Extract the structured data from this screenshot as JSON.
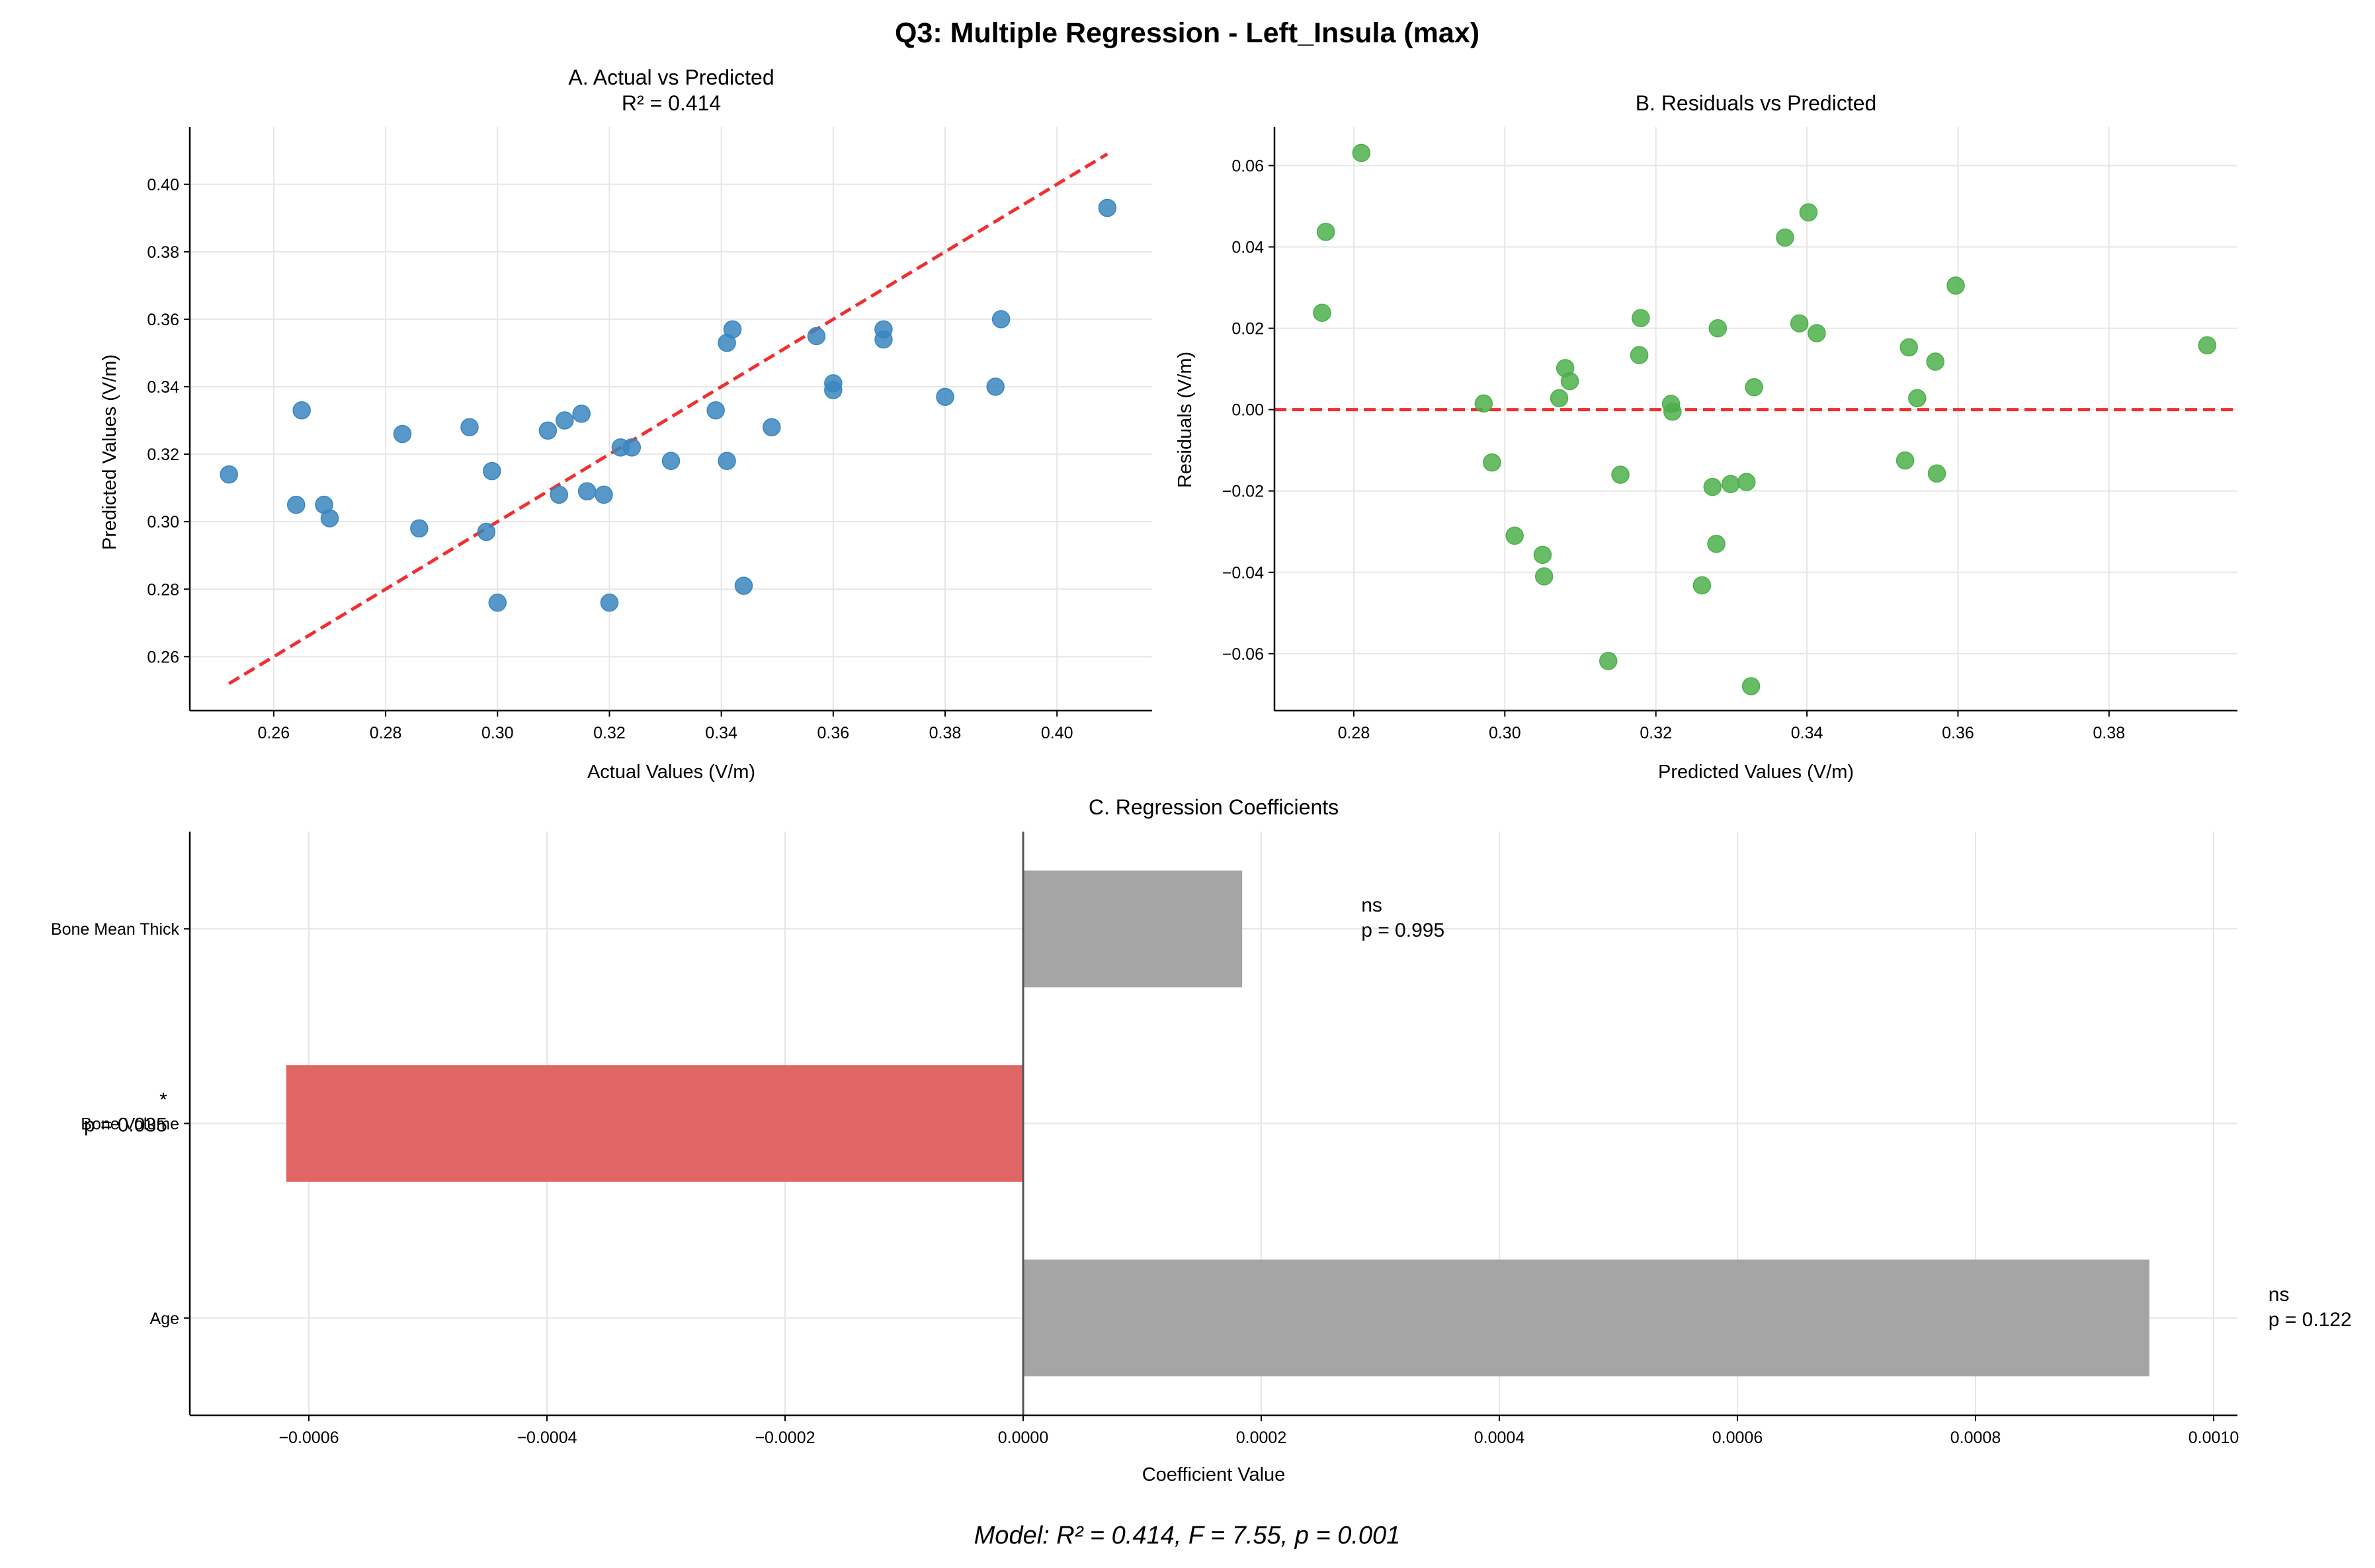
{
  "figure": {
    "suptitle": "Q3: Multiple Regression - Left_Insula (max)",
    "footer": "Model: R² = 0.414, F = 7.55, p = 0.001"
  },
  "colors": {
    "scatter_blue": "#3a86c0",
    "residual_green": "#4cb04a",
    "ref_line": "#f03030",
    "bar_ns": "#a5a5a5",
    "bar_sig": "#e06666",
    "grid": "#e6e6e6"
  },
  "chart_data": [
    {
      "id": "A",
      "type": "scatter",
      "title": "A. Actual vs Predicted",
      "subtitle": "R² = 0.414",
      "xlabel": "Actual Values (V/m)",
      "ylabel": "Predicted Values (V/m)",
      "xlim": [
        0.245,
        0.417
      ],
      "ylim": [
        0.244,
        0.417
      ],
      "xticks": [
        "0.26",
        "0.28",
        "0.30",
        "0.32",
        "0.34",
        "0.36",
        "0.38",
        "0.40"
      ],
      "yticks": [
        "0.26",
        "0.28",
        "0.30",
        "0.32",
        "0.34",
        "0.36",
        "0.38",
        "0.40"
      ],
      "grid": true,
      "reference_line": {
        "x": [
          0.252,
          0.409
        ],
        "y": [
          0.252,
          0.409
        ],
        "style": "dashed"
      },
      "points": [
        [
          0.252,
          0.314
        ],
        [
          0.264,
          0.305
        ],
        [
          0.265,
          0.333
        ],
        [
          0.269,
          0.305
        ],
        [
          0.27,
          0.301
        ],
        [
          0.283,
          0.326
        ],
        [
          0.286,
          0.298
        ],
        [
          0.295,
          0.328
        ],
        [
          0.298,
          0.297
        ],
        [
          0.299,
          0.315
        ],
        [
          0.3,
          0.276
        ],
        [
          0.309,
          0.327
        ],
        [
          0.311,
          0.308
        ],
        [
          0.312,
          0.33
        ],
        [
          0.315,
          0.332
        ],
        [
          0.316,
          0.309
        ],
        [
          0.319,
          0.308
        ],
        [
          0.32,
          0.276
        ],
        [
          0.322,
          0.322
        ],
        [
          0.324,
          0.322
        ],
        [
          0.331,
          0.318
        ],
        [
          0.339,
          0.333
        ],
        [
          0.341,
          0.353
        ],
        [
          0.341,
          0.318
        ],
        [
          0.342,
          0.357
        ],
        [
          0.344,
          0.281
        ],
        [
          0.349,
          0.328
        ],
        [
          0.357,
          0.355
        ],
        [
          0.36,
          0.341
        ],
        [
          0.36,
          0.339
        ],
        [
          0.369,
          0.357
        ],
        [
          0.369,
          0.354
        ],
        [
          0.38,
          0.337
        ],
        [
          0.389,
          0.34
        ],
        [
          0.39,
          0.36
        ],
        [
          0.409,
          0.393
        ]
      ]
    },
    {
      "id": "B",
      "type": "scatter",
      "title": "B. Residuals vs Predicted",
      "xlabel": "Predicted Values (V/m)",
      "ylabel": "Residuals (V/m)",
      "xlim": [
        0.2695,
        0.397
      ],
      "ylim": [
        -0.074,
        0.0695
      ],
      "xticks": [
        "0.28",
        "0.30",
        "0.32",
        "0.34",
        "0.36",
        "0.38"
      ],
      "yticks": [
        "0.06",
        "0.04",
        "0.02",
        "0.00",
        "−0.02",
        "−0.04",
        "−0.06"
      ],
      "grid": true,
      "reference_line": {
        "y": 0.0,
        "style": "dashed"
      },
      "points": [
        [
          0.2758,
          0.0238
        ],
        [
          0.2763,
          0.0437
        ],
        [
          0.281,
          0.0631
        ],
        [
          0.2972,
          0.0015
        ],
        [
          0.2983,
          -0.013
        ],
        [
          0.3013,
          -0.031
        ],
        [
          0.305,
          -0.0357
        ],
        [
          0.3052,
          -0.041
        ],
        [
          0.3072,
          0.0028
        ],
        [
          0.308,
          0.0102
        ],
        [
          0.3086,
          0.007
        ],
        [
          0.3137,
          -0.0618
        ],
        [
          0.3153,
          -0.016
        ],
        [
          0.3178,
          0.0134
        ],
        [
          0.318,
          0.0225
        ],
        [
          0.322,
          0.0014
        ],
        [
          0.3222,
          -0.0005
        ],
        [
          0.3261,
          -0.0432
        ],
        [
          0.3275,
          -0.019
        ],
        [
          0.328,
          -0.033
        ],
        [
          0.3282,
          0.02
        ],
        [
          0.3299,
          -0.0183
        ],
        [
          0.332,
          -0.0178
        ],
        [
          0.3326,
          -0.068
        ],
        [
          0.333,
          0.0055
        ],
        [
          0.3371,
          0.0423
        ],
        [
          0.339,
          0.0212
        ],
        [
          0.3402,
          0.0485
        ],
        [
          0.3413,
          0.0188
        ],
        [
          0.353,
          -0.0125
        ],
        [
          0.3535,
          0.0153
        ],
        [
          0.3546,
          0.0028
        ],
        [
          0.357,
          0.0118
        ],
        [
          0.3572,
          -0.0157
        ],
        [
          0.3597,
          0.0305
        ],
        [
          0.393,
          0.0158
        ]
      ]
    },
    {
      "id": "C",
      "type": "bar",
      "orientation": "horizontal",
      "title": "C. Regression Coefficients",
      "xlabel": "Coefficient Value",
      "xlim": [
        -0.0007,
        0.00102
      ],
      "xticks": [
        "−0.0006",
        "−0.0004",
        "−0.0002",
        "0.0000",
        "0.0002",
        "0.0004",
        "0.0006",
        "0.0008",
        "0.0010"
      ],
      "grid": true,
      "categories": [
        "Bone Mean Thick",
        "Bone Volume",
        "Age"
      ],
      "values": [
        0.000184,
        -0.000619,
        0.000946
      ],
      "significance": [
        "ns",
        "*",
        "ns"
      ],
      "p_labels": [
        "p = 0.995",
        "p = 0.035",
        "p = 0.122"
      ]
    }
  ]
}
